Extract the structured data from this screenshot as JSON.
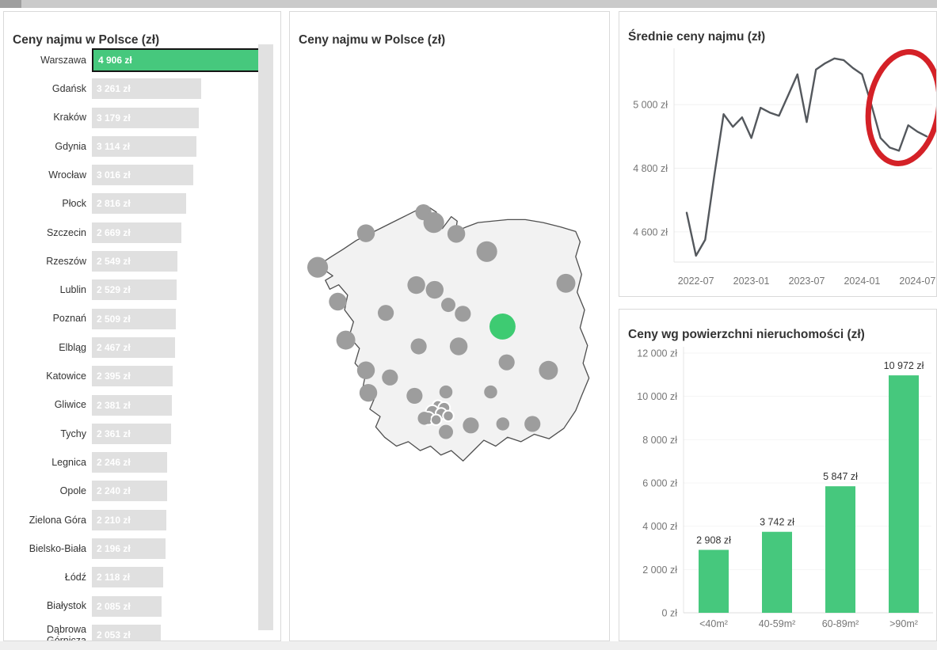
{
  "colors": {
    "green": "#46c87d",
    "green_map": "#3ecb72",
    "bar_gray": "#e0e0e0",
    "selected_border": "#151515",
    "line": "#54585d",
    "annotation_red": "#d42127",
    "bubble_gray": "#9d9d9d",
    "map_fill": "#f2f2f2",
    "map_stroke": "#4f4f4f",
    "title_text": "#333333",
    "axis_text": "#757575",
    "grid": "#f0f0f0"
  },
  "panels": {
    "city_bars": {
      "title": "Ceny najmu w Polsce (zł)"
    },
    "map": {
      "title": "Ceny najmu w Polsce (zł)"
    },
    "line": {
      "title": "Średnie ceny najmu (zł)"
    },
    "area_bars": {
      "title": "Ceny wg powierzchni nieruchomości (zł)"
    }
  },
  "chart_data": [
    {
      "type": "bar",
      "orientation": "horizontal",
      "title": "Ceny najmu w Polsce (zł)",
      "unit": "zł",
      "highlight_index": 0,
      "categories": [
        "Warszawa",
        "Gdańsk",
        "Kraków",
        "Gdynia",
        "Wrocław",
        "Płock",
        "Szczecin",
        "Rzeszów",
        "Lublin",
        "Poznań",
        "Elbląg",
        "Katowice",
        "Gliwice",
        "Tychy",
        "Legnica",
        "Opole",
        "Zielona Góra",
        "Bielsko-Biała",
        "Łódź",
        "Białystok",
        "Dąbrowa Górnicza"
      ],
      "values": [
        4906,
        3261,
        3179,
        3114,
        3016,
        2816,
        2669,
        2549,
        2529,
        2509,
        2467,
        2395,
        2381,
        2361,
        2246,
        2240,
        2210,
        2196,
        2118,
        2085,
        2053
      ]
    },
    {
      "type": "scatter",
      "subtype": "bubble-map",
      "title": "Ceny najmu w Polsce (zł)",
      "region": "Poland",
      "highlight_city": "Warszawa",
      "points": [
        {
          "x": 41.6,
          "y": 4.0,
          "r": 2.7
        },
        {
          "x": 45.1,
          "y": 7.5,
          "r": 3.5
        },
        {
          "x": 22.2,
          "y": 11.1,
          "r": 3.0
        },
        {
          "x": 52.7,
          "y": 11.3,
          "r": 3.0
        },
        {
          "x": 63.0,
          "y": 17.3,
          "r": 3.5
        },
        {
          "x": 5.9,
          "y": 22.6,
          "r": 3.5
        },
        {
          "x": 89.7,
          "y": 28.0,
          "r": 3.2
        },
        {
          "x": 39.2,
          "y": 28.6,
          "r": 3.0
        },
        {
          "x": 45.4,
          "y": 30.2,
          "r": 3.0
        },
        {
          "x": 12.7,
          "y": 34.2,
          "r": 3.0
        },
        {
          "x": 50.0,
          "y": 35.3,
          "r": 2.4
        },
        {
          "x": 28.9,
          "y": 38.0,
          "r": 2.7
        },
        {
          "x": 54.9,
          "y": 38.3,
          "r": 2.7
        },
        {
          "x": 68.3,
          "y": 42.6,
          "r": 4.4,
          "highlight": true
        },
        {
          "x": 15.4,
          "y": 47.2,
          "r": 3.2
        },
        {
          "x": 40.0,
          "y": 49.3,
          "r": 2.7
        },
        {
          "x": 53.5,
          "y": 49.3,
          "r": 3.0
        },
        {
          "x": 69.7,
          "y": 54.7,
          "r": 2.7
        },
        {
          "x": 83.8,
          "y": 57.4,
          "r": 3.2
        },
        {
          "x": 22.2,
          "y": 57.4,
          "r": 3.0
        },
        {
          "x": 30.3,
          "y": 59.8,
          "r": 2.7
        },
        {
          "x": 49.2,
          "y": 64.7,
          "r": 2.2
        },
        {
          "x": 64.3,
          "y": 64.7,
          "r": 2.2
        },
        {
          "x": 23.0,
          "y": 65.0,
          "r": 3.0
        },
        {
          "x": 38.6,
          "y": 66.0,
          "r": 2.7
        },
        {
          "x": 46.5,
          "y": 69.3,
          "r": 1.8,
          "ring": true
        },
        {
          "x": 48.6,
          "y": 70.1,
          "r": 2.0,
          "ring": true
        },
        {
          "x": 44.6,
          "y": 71.4,
          "r": 2.2,
          "ring": true
        },
        {
          "x": 47.6,
          "y": 72.0,
          "r": 1.9,
          "ring": true
        },
        {
          "x": 50.0,
          "y": 72.8,
          "r": 1.8,
          "ring": true
        },
        {
          "x": 43.2,
          "y": 73.6,
          "r": 2.2,
          "ring": true
        },
        {
          "x": 45.9,
          "y": 74.1,
          "r": 1.8,
          "ring": true
        },
        {
          "x": 41.9,
          "y": 73.6,
          "r": 2.2
        },
        {
          "x": 49.2,
          "y": 78.2,
          "r": 2.4
        },
        {
          "x": 57.6,
          "y": 76.0,
          "r": 2.7
        },
        {
          "x": 68.4,
          "y": 75.5,
          "r": 2.2
        },
        {
          "x": 78.4,
          "y": 75.5,
          "r": 2.7
        }
      ]
    },
    {
      "type": "line",
      "title": "Średnie ceny najmu (zł)",
      "unit": "zł",
      "x": [
        "2022-06",
        "2022-07",
        "2022-08",
        "2022-09",
        "2022-10",
        "2022-11",
        "2022-12",
        "2023-01",
        "2023-02",
        "2023-03",
        "2023-04",
        "2023-05",
        "2023-06",
        "2023-07",
        "2023-08",
        "2023-09",
        "2023-10",
        "2023-11",
        "2023-12",
        "2024-01",
        "2024-02",
        "2024-03",
        "2024-04",
        "2024-05",
        "2024-06",
        "2024-07",
        "2024-08"
      ],
      "values": [
        4660,
        4525,
        4575,
        4780,
        4970,
        4930,
        4960,
        4895,
        4990,
        4975,
        4965,
        5030,
        5095,
        4945,
        5110,
        5130,
        5145,
        5140,
        5115,
        5095,
        5000,
        4895,
        4865,
        4855,
        4935,
        4915,
        4900
      ],
      "yticks": [
        4600,
        4800,
        5000
      ],
      "xticks": [
        "2022-07",
        "2023-01",
        "2023-07",
        "2024-01",
        "2024-07"
      ],
      "ylim": [
        4505,
        5172
      ],
      "grid": true,
      "annotation": {
        "shape": "ellipse",
        "color": "#d42127"
      }
    },
    {
      "type": "bar",
      "orientation": "vertical",
      "title": "Ceny wg powierzchni nieruchomości (zł)",
      "unit": "zł",
      "categories": [
        "<40m²",
        "40-59m²",
        "60-89m²",
        ">90m²"
      ],
      "values": [
        2908,
        3742,
        5847,
        10972
      ],
      "yticks": [
        0,
        2000,
        4000,
        6000,
        8000,
        10000,
        12000
      ],
      "ylim": [
        0,
        12000
      ],
      "grid": true
    }
  ]
}
